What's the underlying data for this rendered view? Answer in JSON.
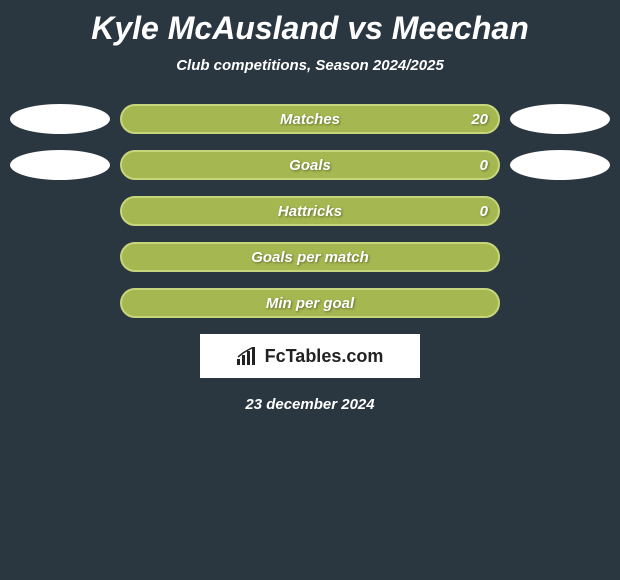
{
  "title": "Kyle McAusland vs Meechan",
  "subtitle": "Club competitions, Season 2024/2025",
  "logo_text": "FcTables.com",
  "date": "23 december 2024",
  "colors": {
    "background": "#2b3740",
    "text": "#ffffff",
    "oval": "#ffffff",
    "bar_fill": "#a5b750",
    "bar_border": "#c7d67a",
    "logo_bg": "#ffffff",
    "logo_text": "#222222"
  },
  "bars": [
    {
      "label": "Matches",
      "value": "20",
      "fill_pct": 100,
      "show_left_oval": true,
      "show_right_oval": true
    },
    {
      "label": "Goals",
      "value": "0",
      "fill_pct": 100,
      "show_left_oval": true,
      "show_right_oval": true
    },
    {
      "label": "Hattricks",
      "value": "0",
      "fill_pct": 100,
      "show_left_oval": false,
      "show_right_oval": false
    },
    {
      "label": "Goals per match",
      "value": "",
      "fill_pct": 100,
      "show_left_oval": false,
      "show_right_oval": false
    },
    {
      "label": "Min per goal",
      "value": "",
      "fill_pct": 100,
      "show_left_oval": false,
      "show_right_oval": false
    }
  ]
}
